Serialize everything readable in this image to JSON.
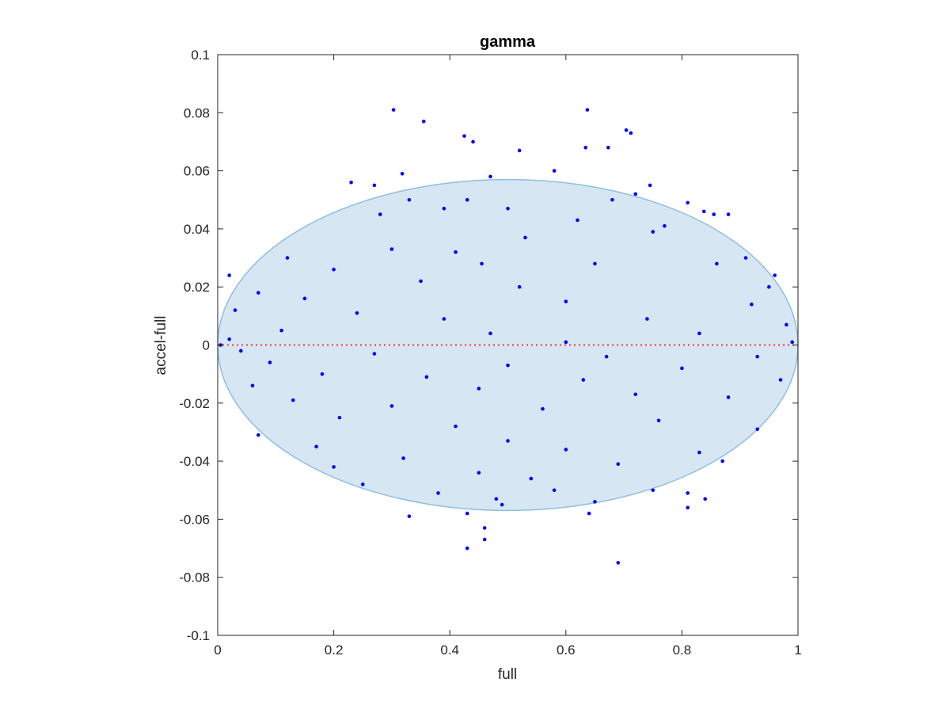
{
  "chart_data": {
    "type": "scatter",
    "title": "gamma",
    "xlabel": "full",
    "ylabel": "accel-full",
    "xlim": [
      0,
      1
    ],
    "ylim": [
      -0.1,
      0.1
    ],
    "xticks": [
      0,
      0.2,
      0.4,
      0.6,
      0.8,
      1
    ],
    "xtick_labels": [
      "0",
      "0.2",
      "0.4",
      "0.6",
      "0.8",
      "1"
    ],
    "yticks": [
      -0.1,
      -0.08,
      -0.06,
      -0.04,
      -0.02,
      0,
      0.02,
      0.04,
      0.06,
      0.08,
      0.1
    ],
    "ytick_labels": [
      "-0.1",
      "-0.08",
      "-0.06",
      "-0.04",
      "-0.02",
      "0",
      "0.02",
      "0.04",
      "0.06",
      "0.08",
      "0.1"
    ],
    "grid": false,
    "box": true,
    "reference_line": {
      "y": 0,
      "style": "dotted",
      "color": "#ff3333"
    },
    "ellipse": {
      "center": [
        0.5,
        0
      ],
      "x_semi_axis": 0.5,
      "y_semi_axis": 0.057,
      "fill": "#d6e6f2",
      "stroke": "#8fbfdf"
    },
    "marker_color": "#0000ff",
    "series": [
      {
        "points": [
          [
            0.303,
            0.081
          ],
          [
            0.637,
            0.081
          ],
          [
            0.355,
            0.077
          ],
          [
            0.704,
            0.074
          ],
          [
            0.712,
            0.073
          ],
          [
            0.425,
            0.072
          ],
          [
            0.44,
            0.07
          ],
          [
            0.634,
            0.068
          ],
          [
            0.673,
            0.068
          ],
          [
            0.52,
            0.067
          ],
          [
            0.58,
            0.06
          ],
          [
            0.318,
            0.059
          ],
          [
            0.47,
            0.058
          ],
          [
            0.745,
            0.055
          ],
          [
            0.23,
            0.056
          ],
          [
            0.27,
            0.055
          ],
          [
            0.43,
            0.05
          ],
          [
            0.72,
            0.052
          ],
          [
            0.81,
            0.049
          ],
          [
            0.838,
            0.046
          ],
          [
            0.855,
            0.045
          ],
          [
            0.88,
            0.045
          ],
          [
            0.62,
            0.043
          ],
          [
            0.77,
            0.041
          ],
          [
            0.53,
            0.037
          ],
          [
            0.3,
            0.033
          ],
          [
            0.41,
            0.032
          ],
          [
            0.455,
            0.028
          ],
          [
            0.65,
            0.028
          ],
          [
            0.86,
            0.028
          ],
          [
            0.2,
            0.026
          ],
          [
            0.35,
            0.022
          ],
          [
            0.52,
            0.02
          ],
          [
            0.95,
            0.02
          ],
          [
            0.07,
            0.018
          ],
          [
            0.15,
            0.016
          ],
          [
            0.6,
            0.015
          ],
          [
            0.92,
            0.014
          ],
          [
            0.03,
            0.012
          ],
          [
            0.24,
            0.011
          ],
          [
            0.39,
            0.009
          ],
          [
            0.74,
            0.009
          ],
          [
            0.98,
            0.007
          ],
          [
            0.11,
            0.005
          ],
          [
            0.47,
            0.004
          ],
          [
            0.83,
            0.004
          ],
          [
            0.02,
            0.002
          ],
          [
            0.6,
            0.001
          ],
          [
            0.99,
            0.001
          ],
          [
            0.005,
            0.0
          ],
          [
            0.04,
            -0.002
          ],
          [
            0.27,
            -0.003
          ],
          [
            0.67,
            -0.004
          ],
          [
            0.93,
            -0.004
          ],
          [
            0.09,
            -0.006
          ],
          [
            0.5,
            -0.007
          ],
          [
            0.8,
            -0.008
          ],
          [
            0.18,
            -0.01
          ],
          [
            0.36,
            -0.011
          ],
          [
            0.63,
            -0.012
          ],
          [
            0.97,
            -0.012
          ],
          [
            0.06,
            -0.014
          ],
          [
            0.45,
            -0.015
          ],
          [
            0.72,
            -0.017
          ],
          [
            0.88,
            -0.018
          ],
          [
            0.13,
            -0.019
          ],
          [
            0.3,
            -0.021
          ],
          [
            0.56,
            -0.022
          ],
          [
            0.21,
            -0.025
          ],
          [
            0.76,
            -0.026
          ],
          [
            0.41,
            -0.028
          ],
          [
            0.93,
            -0.029
          ],
          [
            0.07,
            -0.031
          ],
          [
            0.5,
            -0.033
          ],
          [
            0.17,
            -0.035
          ],
          [
            0.6,
            -0.036
          ],
          [
            0.83,
            -0.037
          ],
          [
            0.32,
            -0.039
          ],
          [
            0.69,
            -0.041
          ],
          [
            0.2,
            -0.042
          ],
          [
            0.45,
            -0.044
          ],
          [
            0.87,
            -0.04
          ],
          [
            0.54,
            -0.046
          ],
          [
            0.25,
            -0.048
          ],
          [
            0.75,
            -0.05
          ],
          [
            0.38,
            -0.051
          ],
          [
            0.58,
            -0.05
          ],
          [
            0.81,
            -0.051
          ],
          [
            0.48,
            -0.053
          ],
          [
            0.84,
            -0.053
          ],
          [
            0.65,
            -0.054
          ],
          [
            0.49,
            -0.055
          ],
          [
            0.81,
            -0.056
          ],
          [
            0.33,
            -0.059
          ],
          [
            0.43,
            -0.058
          ],
          [
            0.64,
            -0.058
          ],
          [
            0.46,
            -0.063
          ],
          [
            0.46,
            -0.067
          ],
          [
            0.43,
            -0.07
          ],
          [
            0.69,
            -0.075
          ],
          [
            0.02,
            0.024
          ],
          [
            0.12,
            0.03
          ],
          [
            0.28,
            0.045
          ],
          [
            0.33,
            0.05
          ],
          [
            0.39,
            0.047
          ],
          [
            0.5,
            0.047
          ],
          [
            0.68,
            0.05
          ],
          [
            0.75,
            0.039
          ],
          [
            0.91,
            0.03
          ],
          [
            0.96,
            0.024
          ]
        ]
      }
    ]
  }
}
